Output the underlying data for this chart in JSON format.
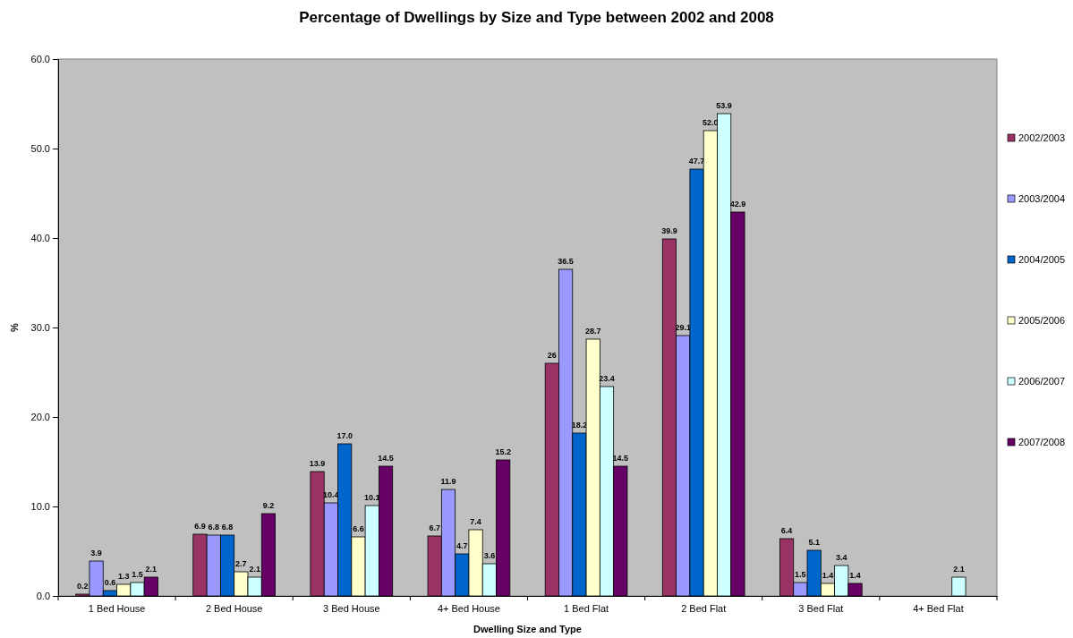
{
  "chart_data": {
    "type": "bar",
    "title": "Percentage of Dwellings by Size and Type between 2002 and 2008",
    "xlabel": "Dwelling Size and Type",
    "ylabel": "%",
    "categories": [
      "1 Bed House",
      "2 Bed House",
      "3 Bed House",
      "4+ Bed House",
      "1 Bed Flat",
      "2 Bed Flat",
      "3 Bed Flat",
      "4+ Bed Flat"
    ],
    "series": [
      {
        "name": "2002/2003",
        "color": "#993366",
        "values": [
          0.2,
          6.9,
          13.9,
          6.7,
          26,
          39.9,
          6.4,
          null
        ],
        "value_labels": [
          "0.2",
          "6.9",
          "13.9",
          "6.7",
          "26",
          "39.9",
          "6.4",
          null
        ]
      },
      {
        "name": "2003/2004",
        "color": "#9999ff",
        "values": [
          3.9,
          6.8,
          10.4,
          11.9,
          36.5,
          29.1,
          1.5,
          null
        ],
        "value_labels": [
          "3.9",
          "6.8",
          "10.4",
          "11.9",
          "36.5",
          "29.1",
          "1.5",
          null
        ]
      },
      {
        "name": "2004/2005",
        "color": "#0066cc",
        "values": [
          0.6,
          6.8,
          17.0,
          4.7,
          18.2,
          47.7,
          5.1,
          null
        ],
        "value_labels": [
          "0.6",
          "6.8",
          "17.0",
          "4.7",
          "18.2",
          "47.7",
          "5.1",
          null
        ]
      },
      {
        "name": "2005/2006",
        "color": "#ffffcc",
        "values": [
          1.3,
          2.7,
          6.6,
          7.4,
          28.7,
          52.0,
          1.4,
          null
        ],
        "value_labels": [
          "1.3",
          "2.7",
          "6.6",
          "7.4",
          "28.7",
          "52.0",
          "1.4",
          null
        ]
      },
      {
        "name": "2006/2007",
        "color": "#ccffff",
        "values": [
          1.5,
          2.1,
          10.1,
          3.6,
          23.4,
          53.9,
          3.4,
          2.1
        ],
        "value_labels": [
          "1.5",
          "2.1",
          "10.1",
          "3.6",
          "23.4",
          "53.9",
          "3.4",
          "2.1"
        ]
      },
      {
        "name": "2007/2008",
        "color": "#660066",
        "values": [
          2.1,
          9.2,
          14.5,
          15.2,
          14.5,
          42.9,
          1.4,
          null
        ],
        "value_labels": [
          "2.1",
          "9.2",
          "14.5",
          "15.2",
          "14.5",
          "42.9",
          "1.4",
          null
        ]
      }
    ],
    "ylim": [
      0,
      60
    ],
    "yticks": [
      {
        "value": 0,
        "label": "0.0"
      },
      {
        "value": 10,
        "label": "10.0"
      },
      {
        "value": 20,
        "label": "20.0"
      },
      {
        "value": 30,
        "label": "30.0"
      },
      {
        "value": 40,
        "label": "40.0"
      },
      {
        "value": 50,
        "label": "50.0"
      },
      {
        "value": 60,
        "label": "60.0"
      }
    ],
    "grid": false,
    "legend": "right"
  }
}
